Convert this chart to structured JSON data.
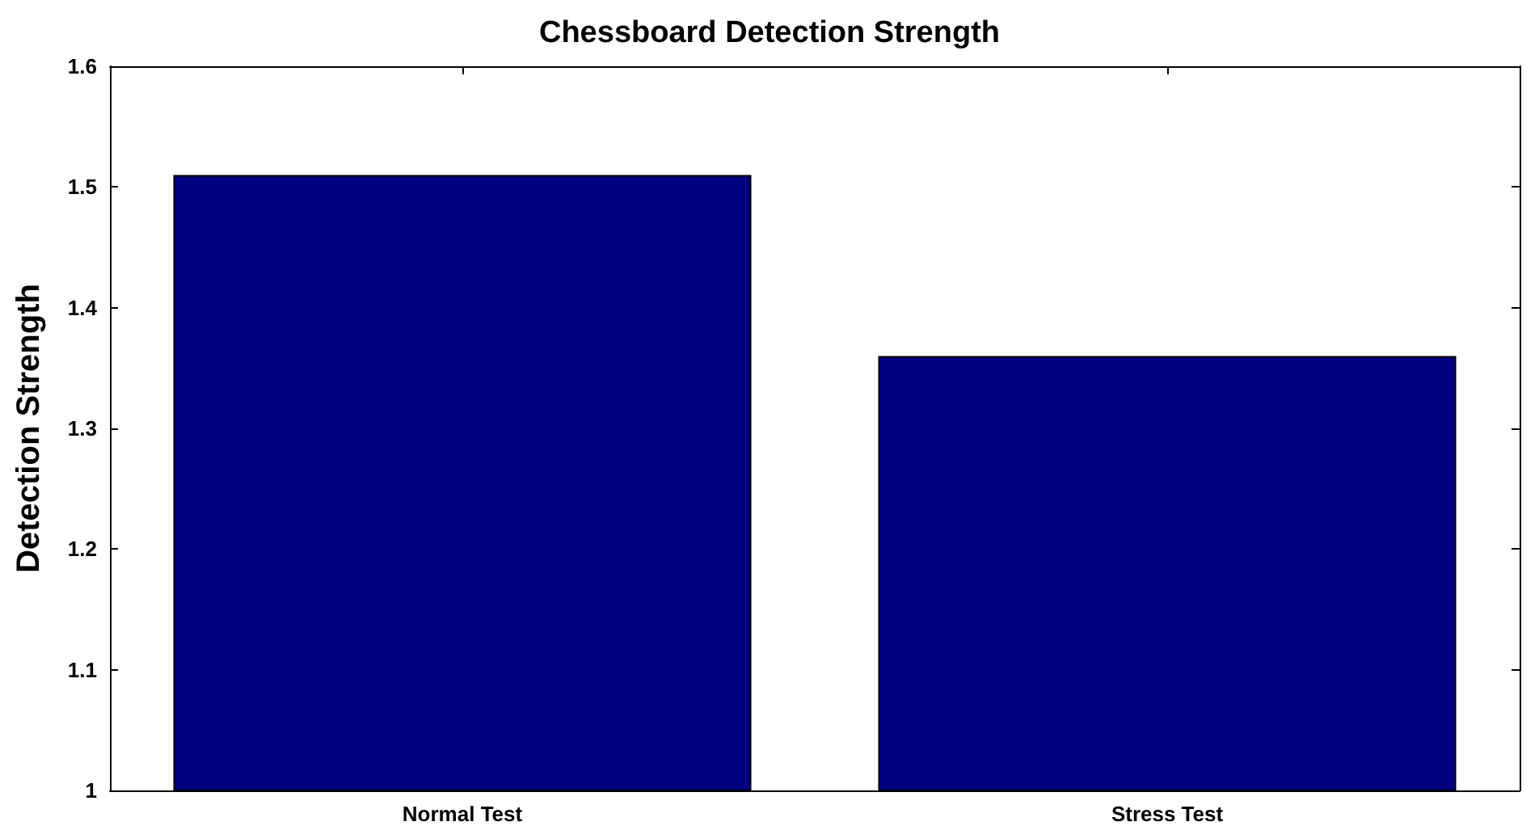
{
  "chart_data": {
    "type": "bar",
    "title": "Chessboard Detection Strength",
    "ylabel": "Detection Strength",
    "categories": [
      "Normal Test",
      "Stress Test"
    ],
    "values": [
      1.51,
      1.36
    ],
    "color": "#000080",
    "ylim": [
      1,
      1.6
    ],
    "yticks": [
      1,
      1.1,
      1.2,
      1.3,
      1.4,
      1.5,
      1.6
    ],
    "grid": false
  }
}
